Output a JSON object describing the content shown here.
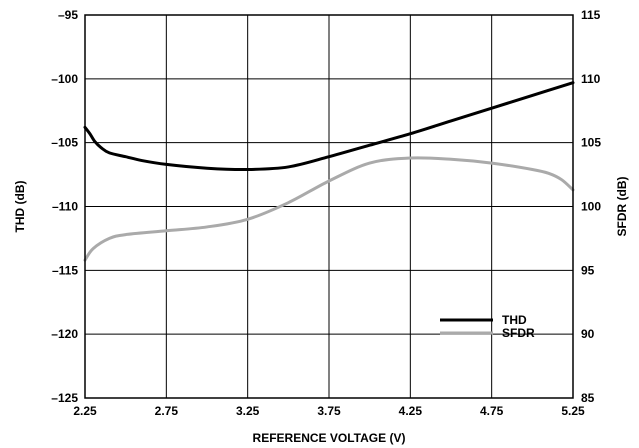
{
  "chart_data": {
    "type": "line",
    "title": "",
    "xlabel": "REFERENCE VOLTAGE (V)",
    "ylabel_left": "THD (dB)",
    "ylabel_right": "SFDR (dB)",
    "xlim": [
      2.25,
      5.25
    ],
    "ylim_left": [
      -125,
      -95
    ],
    "ylim_right": [
      85,
      115
    ],
    "x_ticks": [
      "2.25",
      "2.75",
      "3.25",
      "3.75",
      "4.25",
      "4.75",
      "5.25"
    ],
    "y_left_ticks": [
      "–95",
      "–100",
      "–105",
      "–110",
      "–115",
      "–120",
      "–125"
    ],
    "y_right_ticks": [
      "115",
      "110",
      "105",
      "100",
      "95",
      "90",
      "85"
    ],
    "grid": true,
    "legend_position": "bottom-right",
    "series": [
      {
        "name": "THD",
        "axis": "left",
        "color": "#000000",
        "x": [
          2.25,
          2.28,
          2.31,
          2.35,
          2.4,
          2.5,
          2.6,
          2.75,
          3.0,
          3.25,
          3.5,
          3.75,
          4.0,
          4.25,
          4.5,
          4.75,
          5.0,
          5.25
        ],
        "y": [
          -103.8,
          -104.3,
          -104.9,
          -105.4,
          -105.8,
          -106.1,
          -106.4,
          -106.7,
          -107.0,
          -107.1,
          -106.9,
          -106.1,
          -105.2,
          -104.3,
          -103.3,
          -102.3,
          -101.3,
          -100.3
        ]
      },
      {
        "name": "SFDR",
        "axis": "right",
        "color": "#aaaaaa",
        "x": [
          2.25,
          2.3,
          2.4,
          2.5,
          2.75,
          3.0,
          3.25,
          3.5,
          3.75,
          4.0,
          4.25,
          4.5,
          4.75,
          5.0,
          5.1,
          5.18,
          5.25
        ],
        "y": [
          95.8,
          96.7,
          97.5,
          97.8,
          98.1,
          98.4,
          99.0,
          100.3,
          102.0,
          103.4,
          103.8,
          103.7,
          103.4,
          102.9,
          102.6,
          102.1,
          101.3
        ]
      }
    ]
  }
}
